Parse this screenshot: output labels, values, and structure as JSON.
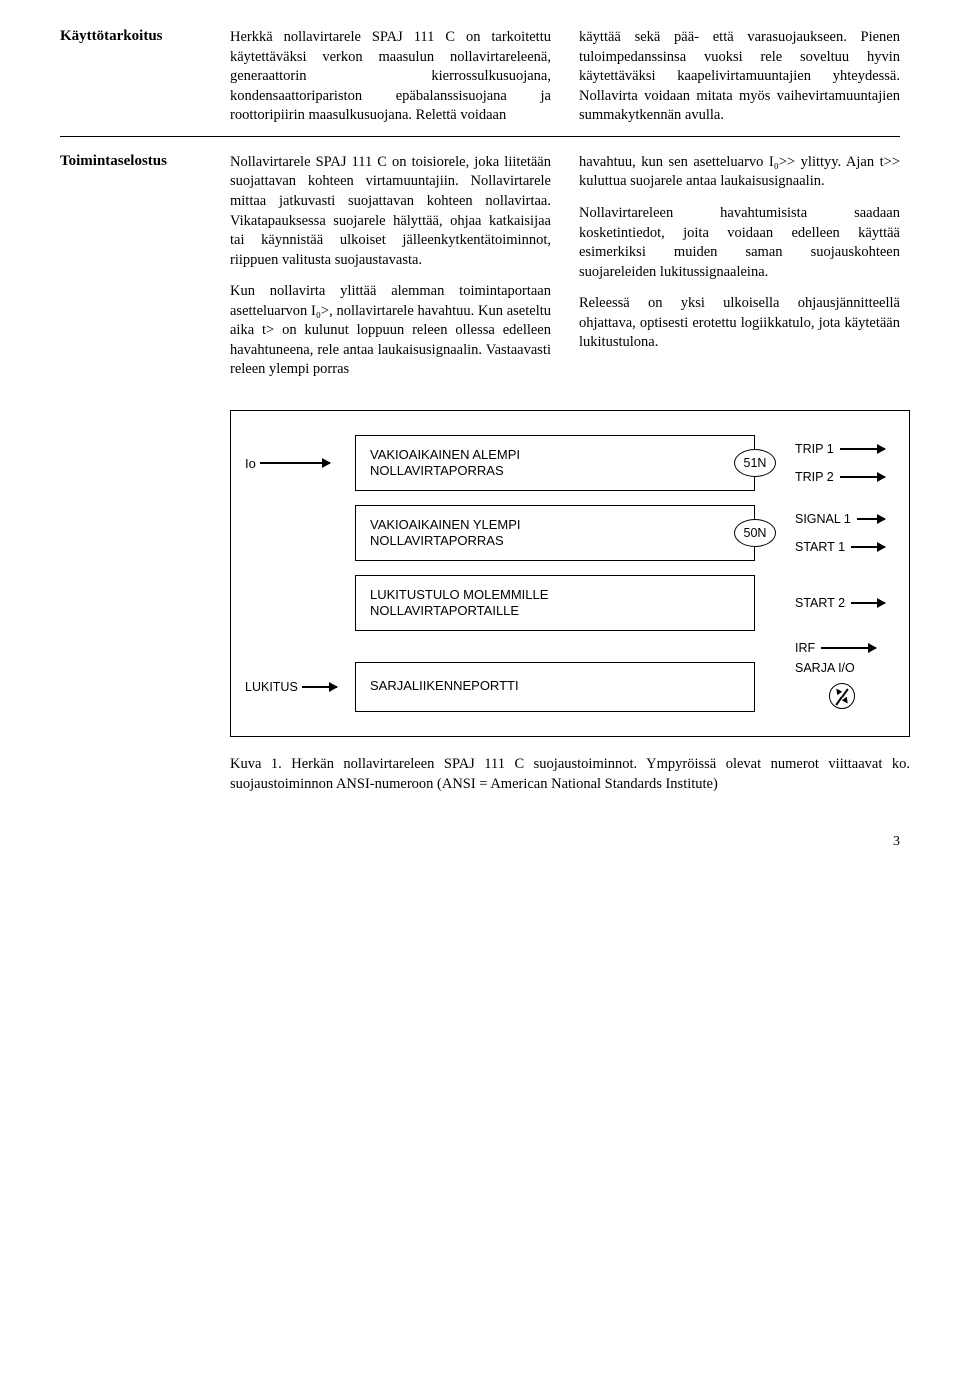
{
  "section1": {
    "label": "Käyttötarkoitus",
    "left": "Herkkä nollavirtarele SPAJ 111 C on tarkoitettu käytettäväksi verkon maasulun nollavirtareleenä, generaattorin kierrossulkusuojana, kondensaattoripariston epäbalanssisuojana ja roottoripiirin maasulkusuojana. Relettä voidaan",
    "right": "käyttää sekä pää- että varasuojaukseen. Pienen tuloimpedanssinsa vuoksi rele soveltuu hyvin käytettäväksi kaapelivirtamuuntajien yhteydessä. Nollavirta voidaan mitata myös vaihevirtamuuntajien summakytkennän avulla."
  },
  "section2": {
    "label": "Toimintaselostus",
    "left_p1": "Nollavirtarele SPAJ 111 C on toisiorele, joka liitetään suojattavan kohteen virtamuuntajiin. Nollavirtarele mittaa jatkuvasti suojattavan kohteen nollavirtaa. Vikatapauksessa suojarele hälyttää, ohjaa katkaisijaa tai käynnistää ulkoiset jälleenkytkentätoiminnot, riippuen valitusta suojaustavasta.",
    "left_p2": "Kun nollavirta ylittää alemman toimintaportaan asetteluarvon I₀>, nollavirtarele havahtuu. Kun aseteltu aika t> on kulunut loppuun releen ollessa edelleen havahtuneena, rele antaa laukaisusignaalin. Vastaavasti releen ylempi porras",
    "right_p1": "havahtuu, kun sen asetteluarvo I₀>> ylittyy. Ajan t>> kuluttua suojarele antaa laukaisusignaalin.",
    "right_p2": "Nollavirtareleen havahtumisista saadaan kosketintiedot, joita voidaan edelleen käyttää esimerkiksi muiden saman suojauskohteen suojareleiden lukitussignaaleina.",
    "right_p3": "Releessä on yksi ulkoisella ohjausjännitteellä ohjattava, optisesti erotettu logiikkatulo, jota käytetään lukitustulona."
  },
  "diagram": {
    "input": "Io",
    "lukitus": "LUKITUS",
    "blocks": [
      {
        "label": "VAKIOAIKAINEN ALEMPI\nNOLLAVIRTAPORRAS",
        "ansi": "51N"
      },
      {
        "label": "VAKIOAIKAINEN YLEMPI\nNOLLAVIRTAPORRAS",
        "ansi": "50N"
      },
      {
        "label": "LUKITUSTULO MOLEMMILLE\nNOLLAVIRTAPORTAILLE",
        "ansi": ""
      },
      {
        "label": "SARJALIIKENNEPORTTI",
        "ansi": ""
      }
    ],
    "outputs": {
      "trip1": "TRIP 1",
      "trip2": "TRIP 2",
      "signal1": "SIGNAL 1",
      "start1": "START 1",
      "start2": "START 2",
      "irf": "IRF",
      "sarja": "SARJA I/O"
    }
  },
  "caption": "Kuva 1. Herkän nollavirtareleen SPAJ 111 C suojaustoiminnot. Ympyröissä olevat numerot viittaavat ko. suojaustoiminnon ANSI-numeroon (ANSI = American National Standards Institute)",
  "page": "3"
}
